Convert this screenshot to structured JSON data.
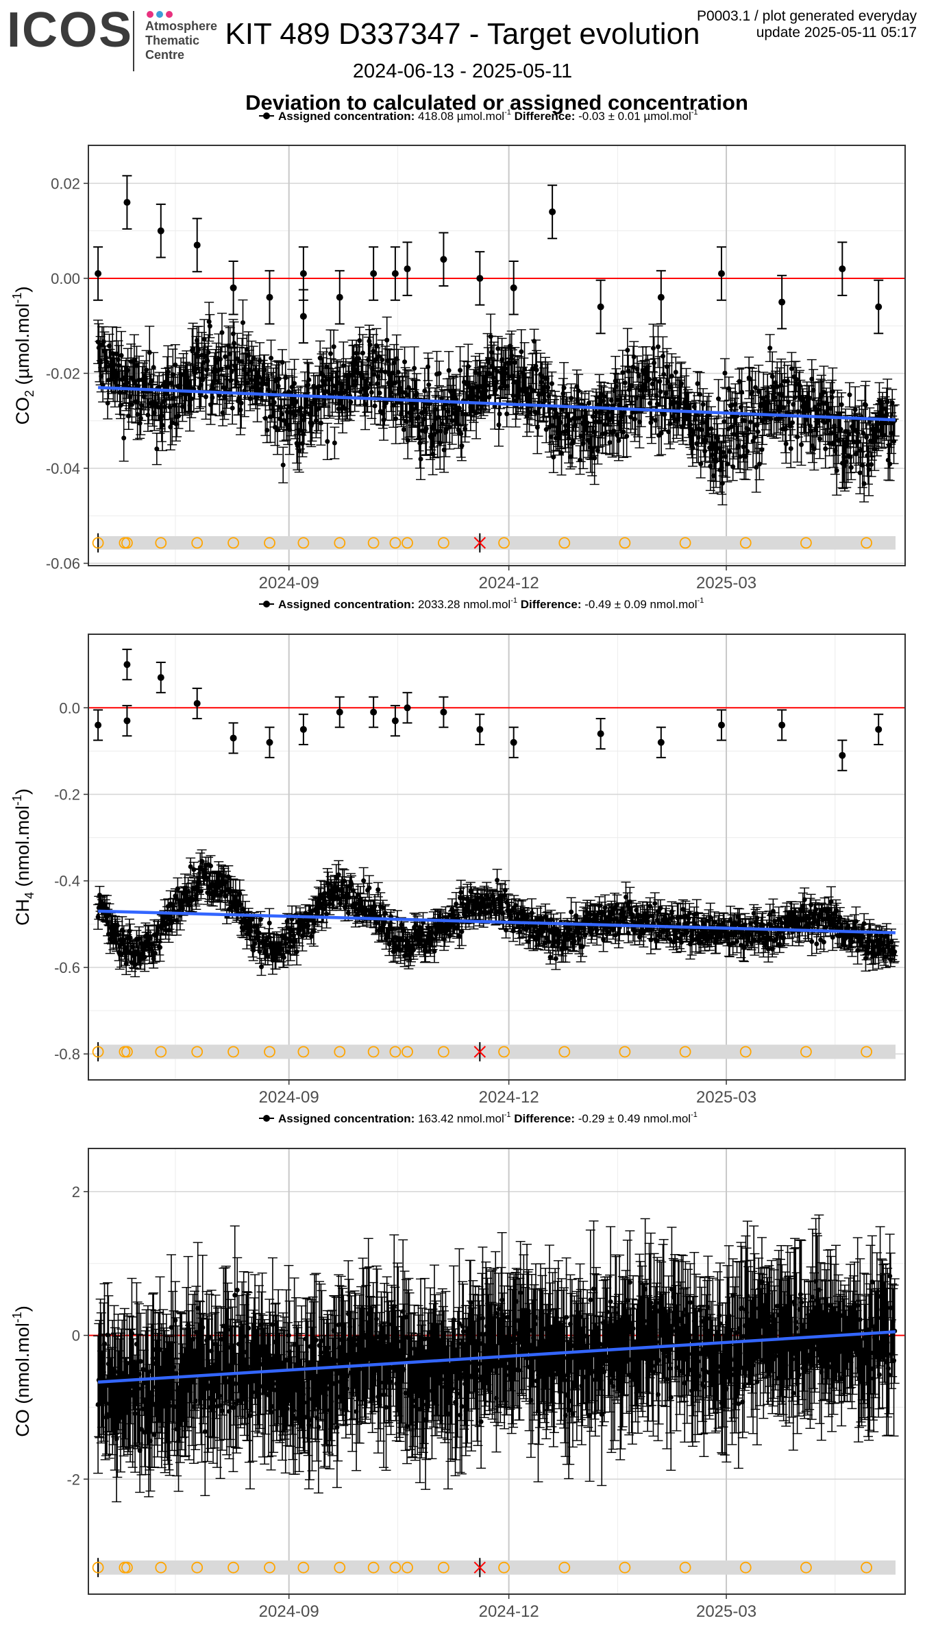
{
  "logo": {
    "word": "ICOS",
    "subtitle": [
      "Atmosphere",
      "Thematic",
      "Centre"
    ],
    "dot_colors": [
      "#e8327f",
      "#3c9ed8",
      "#e8327f"
    ]
  },
  "header": {
    "title": "KIT 489 D337347 - Target evolution",
    "product": "P0003.1 / plot generated everyday",
    "update": "update  2025-05-11 05:17",
    "date_range": "2024-06-13 - 2025-05-11",
    "subtitle": "Deviation to calculated or assigned concentration"
  },
  "colors": {
    "reference": "#ff0000",
    "trend": "#3366ff",
    "points": "#000000",
    "events": "#ffa500",
    "event_band": "#d9d9d9",
    "cross": "#ff0000"
  },
  "chart_data": [
    {
      "type": "scatter",
      "species": "CO2",
      "legend": {
        "assigned_label": "Assigned concentration:",
        "assigned_value": "418.08 µmol.mol",
        "difference_label": "Difference:",
        "difference_value": "-0.03 ± 0.01 µmol.mol"
      },
      "ylabel": "CO2 (µmol.mol-1)",
      "x_range": [
        "2024-06-10",
        "2025-05-14"
      ],
      "ylim": [
        -0.0605,
        0.028
      ],
      "yticks": [
        -0.06,
        -0.04,
        -0.02,
        0.0,
        0.02
      ],
      "ytick_labels": [
        "-0.06",
        "-0.04",
        "-0.02",
        "0.00",
        "0.02"
      ],
      "xtick_labels": [
        "2024-09",
        "2024-12",
        "2025-03"
      ],
      "reference_line": 0.0,
      "trend": {
        "start": [
          "2024-06-14",
          -0.023
        ],
        "end": [
          "2025-05-10",
          -0.0298
        ]
      },
      "event_band_value": -0.0557,
      "outliers": [
        [
          "2024-06-14",
          0.001
        ],
        [
          "2024-06-26",
          0.016
        ],
        [
          "2024-07-10",
          0.01
        ],
        [
          "2024-07-25",
          0.007
        ],
        [
          "2024-08-09",
          -0.002
        ],
        [
          "2024-08-24",
          -0.004
        ],
        [
          "2024-09-07",
          0.001
        ],
        [
          "2024-09-07",
          -0.008
        ],
        [
          "2024-09-22",
          -0.004
        ],
        [
          "2024-10-06",
          0.001
        ],
        [
          "2024-10-15",
          0.001
        ],
        [
          "2024-10-20",
          0.002
        ],
        [
          "2024-11-04",
          0.004
        ],
        [
          "2024-11-19",
          0.0
        ],
        [
          "2024-12-03",
          -0.002
        ],
        [
          "2024-12-19",
          0.014
        ],
        [
          "2025-01-08",
          -0.006
        ],
        [
          "2025-02-02",
          -0.004
        ],
        [
          "2025-02-27",
          0.001
        ],
        [
          "2025-03-24",
          -0.005
        ],
        [
          "2025-04-18",
          0.002
        ],
        [
          "2025-05-03",
          -0.006
        ]
      ],
      "noise": {
        "start": -0.021,
        "end": -0.031,
        "spread": 0.006,
        "amp": 0.004,
        "err": 0.004,
        "extra_amp": 0.0,
        "extra_period": 60
      }
    },
    {
      "type": "scatter",
      "species": "CH4",
      "legend": {
        "assigned_label": "Assigned concentration:",
        "assigned_value": "2033.28 nmol.mol",
        "difference_label": "Difference:",
        "difference_value": "-0.49 ± 0.09 nmol.mol"
      },
      "ylabel": "CH4 (nmol.mol-1)",
      "x_range": [
        "2024-06-10",
        "2025-05-14"
      ],
      "ylim": [
        -0.86,
        0.17
      ],
      "yticks": [
        -0.8,
        -0.6,
        -0.4,
        -0.2,
        0.0
      ],
      "ytick_labels": [
        "-0.8",
        "-0.6",
        "-0.4",
        "-0.2",
        "0.0"
      ],
      "xtick_labels": [
        "2024-09",
        "2024-12",
        "2025-03"
      ],
      "reference_line": 0.0,
      "trend": {
        "start": [
          "2024-06-14",
          -0.47
        ],
        "end": [
          "2025-05-10",
          -0.52
        ]
      },
      "event_band_value": -0.795,
      "outliers": [
        [
          "2024-06-14",
          -0.04
        ],
        [
          "2024-06-26",
          0.1
        ],
        [
          "2024-06-26",
          -0.03
        ],
        [
          "2024-07-10",
          0.07
        ],
        [
          "2024-07-25",
          0.01
        ],
        [
          "2024-08-09",
          -0.07
        ],
        [
          "2024-08-24",
          -0.08
        ],
        [
          "2024-09-07",
          -0.05
        ],
        [
          "2024-09-22",
          -0.01
        ],
        [
          "2024-10-06",
          -0.01
        ],
        [
          "2024-10-15",
          -0.03
        ],
        [
          "2024-10-20",
          0.0
        ],
        [
          "2024-11-04",
          -0.01
        ],
        [
          "2024-11-19",
          -0.05
        ],
        [
          "2024-12-03",
          -0.08
        ],
        [
          "2025-01-08",
          -0.06
        ],
        [
          "2025-02-02",
          -0.08
        ],
        [
          "2025-02-27",
          -0.04
        ],
        [
          "2025-03-24",
          -0.04
        ],
        [
          "2025-04-18",
          -0.11
        ],
        [
          "2025-05-03",
          -0.05
        ]
      ],
      "noise": {
        "start": -0.47,
        "end": -0.52,
        "spread": 0.03,
        "amp": 0.07,
        "err": 0.025,
        "extra_amp": 0.06,
        "extra_period": 55
      }
    },
    {
      "type": "scatter",
      "species": "CO",
      "legend": {
        "assigned_label": "Assigned concentration:",
        "assigned_value": "163.42 nmol.mol",
        "difference_label": "Difference:",
        "difference_value": "-0.29 ± 0.49 nmol.mol"
      },
      "ylabel": "CO (nmol.mol-1)",
      "x_range": [
        "2024-06-10",
        "2025-05-14"
      ],
      "ylim": [
        -3.6,
        2.6
      ],
      "yticks": [
        -2,
        0,
        2
      ],
      "ytick_labels": [
        "-2",
        "0",
        "2"
      ],
      "xtick_labels": [
        "2024-09",
        "2024-12",
        "2025-03"
      ],
      "reference_line": 0.0,
      "trend": {
        "start": [
          "2024-06-14",
          -0.65
        ],
        "end": [
          "2025-05-10",
          0.05
        ]
      },
      "event_band_value": -3.23,
      "outliers": [],
      "noise": {
        "start": -0.65,
        "end": 0.05,
        "spread": 0.5,
        "amp": 0.15,
        "err": 0.75,
        "extra_amp": 0.0,
        "extra_period": 60
      }
    }
  ],
  "event_dates": [
    "2024-06-14",
    "2024-06-25",
    "2024-06-26",
    "2024-07-10",
    "2024-07-25",
    "2024-08-09",
    "2024-08-24",
    "2024-09-07",
    "2024-09-22",
    "2024-10-06",
    "2024-10-15",
    "2024-10-20",
    "2024-11-04",
    "2024-11-29",
    "2024-12-24",
    "2025-01-18",
    "2025-02-12",
    "2025-03-09",
    "2025-04-03",
    "2025-04-28"
  ],
  "cross_date": "2024-11-19",
  "xtick_dates": [
    "2024-09-01",
    "2024-12-01",
    "2025-03-01"
  ],
  "minor_dates": [
    "2024-07-16",
    "2024-10-16",
    "2025-01-15",
    "2025-04-15"
  ]
}
